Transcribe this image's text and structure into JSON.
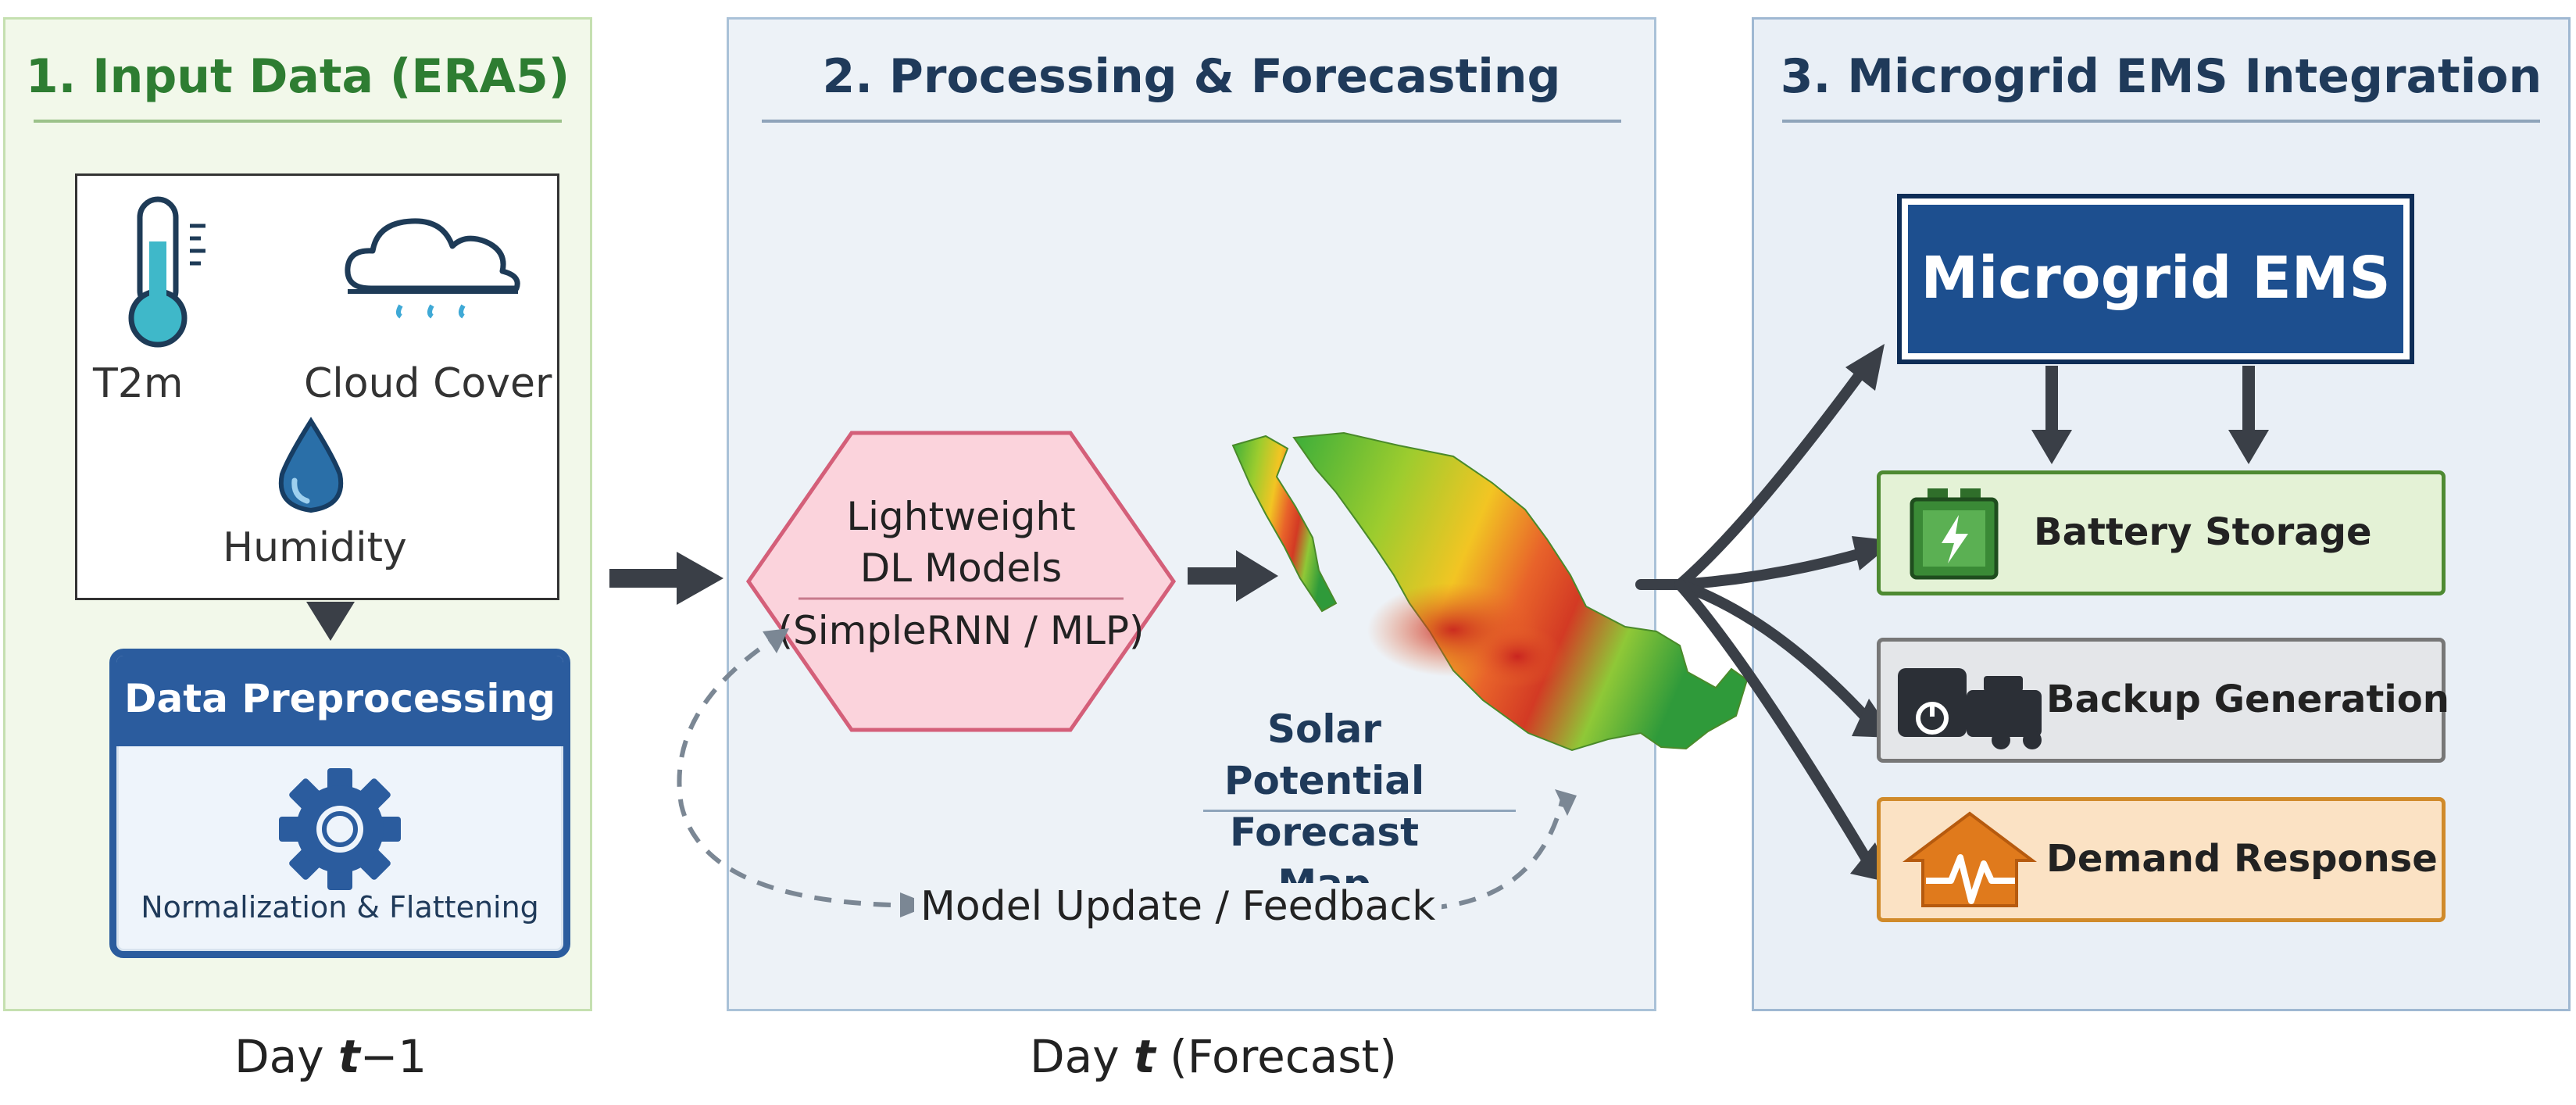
{
  "panels": {
    "input": {
      "title": "1. Input Data (ERA5)"
    },
    "processing": {
      "title": "2. Processing & Forecasting"
    },
    "ems": {
      "title": "3. Microgrid EMS Integration"
    }
  },
  "inputs": {
    "t2m": "T2m",
    "cloud": "Cloud Cover",
    "humidity": "Humidity"
  },
  "preprocessing": {
    "title": "Data Preprocessing",
    "subtitle": "Normalization & Flattening"
  },
  "model": {
    "line1": "Lightweight",
    "line2": "DL Models",
    "line3": "(SimpleRNN / MLP)"
  },
  "map": {
    "caption_line1": "Solar Potential",
    "caption_line2": "Forecast Map"
  },
  "feedback": {
    "label": "Model Update / Feedback"
  },
  "ems": {
    "title": "Microgrid EMS",
    "battery": "Battery Storage",
    "backup": "Backup Generation",
    "demand": "Demand Response"
  },
  "days": {
    "prev_prefix": "Day ",
    "prev_var": "t",
    "prev_suffix": "−1",
    "curr_prefix": "Day ",
    "curr_var": "t",
    "curr_suffix": " (Forecast)"
  },
  "colors": {
    "input_accent": "#2e7d32",
    "processing_accent": "#1f3a5a",
    "ems_blue": "#1d4f8f",
    "model_fill": "#fbd3dc",
    "battery_green": "#4e8a32",
    "demand_orange": "#d08a2a"
  }
}
